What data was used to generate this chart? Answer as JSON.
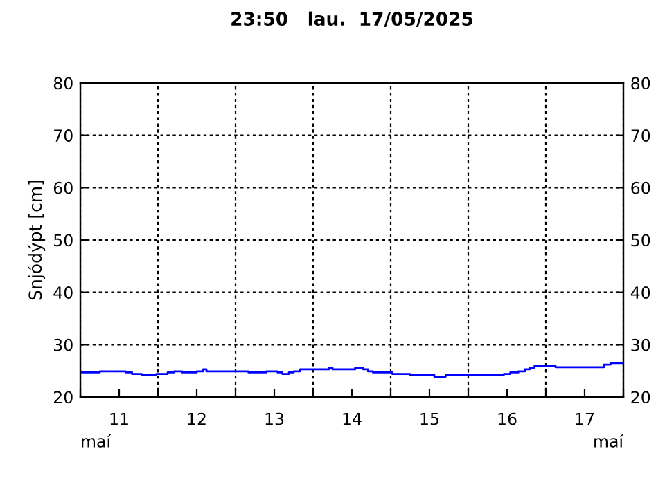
{
  "chart_data": {
    "type": "step",
    "title": "23:50   lau.  17/05/2025",
    "ylabel": "Snjódýpt [cm]",
    "annotations": [
      "maí",
      "maí"
    ],
    "series": [
      {
        "color": "#0000ff",
        "x": [
          "2025-05-11T00:00",
          "2025-05-11T06:00",
          "2025-05-11T14:00",
          "2025-05-11T16:00",
          "2025-05-11T19:00",
          "2025-05-11T23:30",
          "2025-05-12T03:00",
          "2025-05-12T05:00",
          "2025-05-12T07:30",
          "2025-05-12T12:00",
          "2025-05-12T14:00",
          "2025-05-12T15:00",
          "2025-05-13T04:00",
          "2025-05-13T09:30",
          "2025-05-13T13:00",
          "2025-05-13T14:30",
          "2025-05-13T16:30",
          "2025-05-13T18:00",
          "2025-05-13T20:00",
          "2025-05-14T05:00",
          "2025-05-14T06:00",
          "2025-05-14T13:00",
          "2025-05-14T15:30",
          "2025-05-14T17:00",
          "2025-05-14T18:30",
          "2025-05-15T00:30",
          "2025-05-15T06:00",
          "2025-05-15T13:30",
          "2025-05-15T17:00",
          "2025-05-16T11:00",
          "2025-05-16T13:00",
          "2025-05-16T15:30",
          "2025-05-16T17:30",
          "2025-05-16T19:00",
          "2025-05-16T20:30",
          "2025-05-17T03:00",
          "2025-05-17T18:00",
          "2025-05-17T20:00",
          "2025-05-17T23:50"
        ],
        "values": [
          24.7,
          24.9,
          24.7,
          24.4,
          24.2,
          24.4,
          24.7,
          24.9,
          24.7,
          24.9,
          25.3,
          24.9,
          24.7,
          24.9,
          24.7,
          24.4,
          24.7,
          24.9,
          25.3,
          25.6,
          25.3,
          25.6,
          25.3,
          24.9,
          24.7,
          24.4,
          24.2,
          23.9,
          24.2,
          24.4,
          24.7,
          24.9,
          25.3,
          25.6,
          26.0,
          25.7,
          26.2,
          26.5,
          26.5
        ]
      }
    ],
    "xlim": [
      "2025-05-11T00:00",
      "2025-05-18T00:00"
    ],
    "xticks": [
      {
        "value": "2025-05-11T00:00",
        "label": null
      },
      {
        "value": "2025-05-11T12:00",
        "label": "11"
      },
      {
        "value": "2025-05-12T00:00",
        "label": null
      },
      {
        "value": "2025-05-12T12:00",
        "label": "12"
      },
      {
        "value": "2025-05-13T00:00",
        "label": null
      },
      {
        "value": "2025-05-13T12:00",
        "label": "13"
      },
      {
        "value": "2025-05-14T00:00",
        "label": null
      },
      {
        "value": "2025-05-14T12:00",
        "label": "14"
      },
      {
        "value": "2025-05-15T00:00",
        "label": null
      },
      {
        "value": "2025-05-15T12:00",
        "label": "15"
      },
      {
        "value": "2025-05-16T00:00",
        "label": null
      },
      {
        "value": "2025-05-16T12:00",
        "label": "16"
      },
      {
        "value": "2025-05-17T00:00",
        "label": null
      },
      {
        "value": "2025-05-17T12:00",
        "label": "17"
      },
      {
        "value": "2025-05-18T00:00",
        "label": null
      }
    ],
    "ylim": [
      20,
      80
    ],
    "yticks": [
      20,
      30,
      40,
      50,
      60,
      70,
      80
    ],
    "y2lim": [
      20,
      80
    ],
    "y2ticks": [
      20,
      30,
      40,
      50,
      60,
      70,
      80
    ],
    "grid": true
  }
}
